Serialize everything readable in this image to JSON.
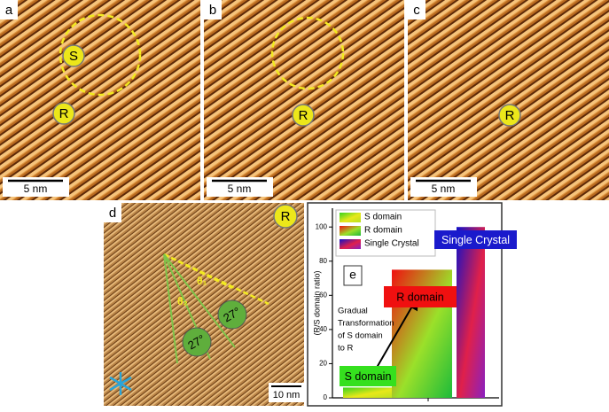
{
  "panels": [
    {
      "label": "a",
      "markers": [
        "S",
        "R"
      ],
      "scale_bar": "5 nm"
    },
    {
      "label": "b",
      "markers": [
        "R"
      ],
      "scale_bar": "5 nm"
    },
    {
      "label": "c",
      "markers": [
        "R"
      ],
      "scale_bar": "5 nm"
    },
    {
      "label": "d",
      "markers": [
        "R"
      ],
      "angles": [
        "θ₁",
        "θ₂"
      ],
      "angle_labels": [
        "27°",
        "27°"
      ],
      "scale_bar": "10 nm"
    }
  ],
  "chart_data": {
    "type": "bar",
    "panel_label": "e",
    "y_label": "(R/S domain ratio)",
    "ylim": [
      0,
      111
    ],
    "yticks": [
      0,
      20,
      40,
      60,
      80,
      100
    ],
    "series": [
      {
        "name": "S domain",
        "color": "#35d41e",
        "values": [
          6
        ]
      },
      {
        "name": "R domain",
        "color": "#f01010",
        "values": [
          75
        ]
      },
      {
        "name": "Single Crystal",
        "color": "#1010c8",
        "values": [
          100
        ]
      }
    ],
    "annotation": [
      "Gradual",
      "Transformation",
      "of S domain",
      "to R"
    ]
  }
}
